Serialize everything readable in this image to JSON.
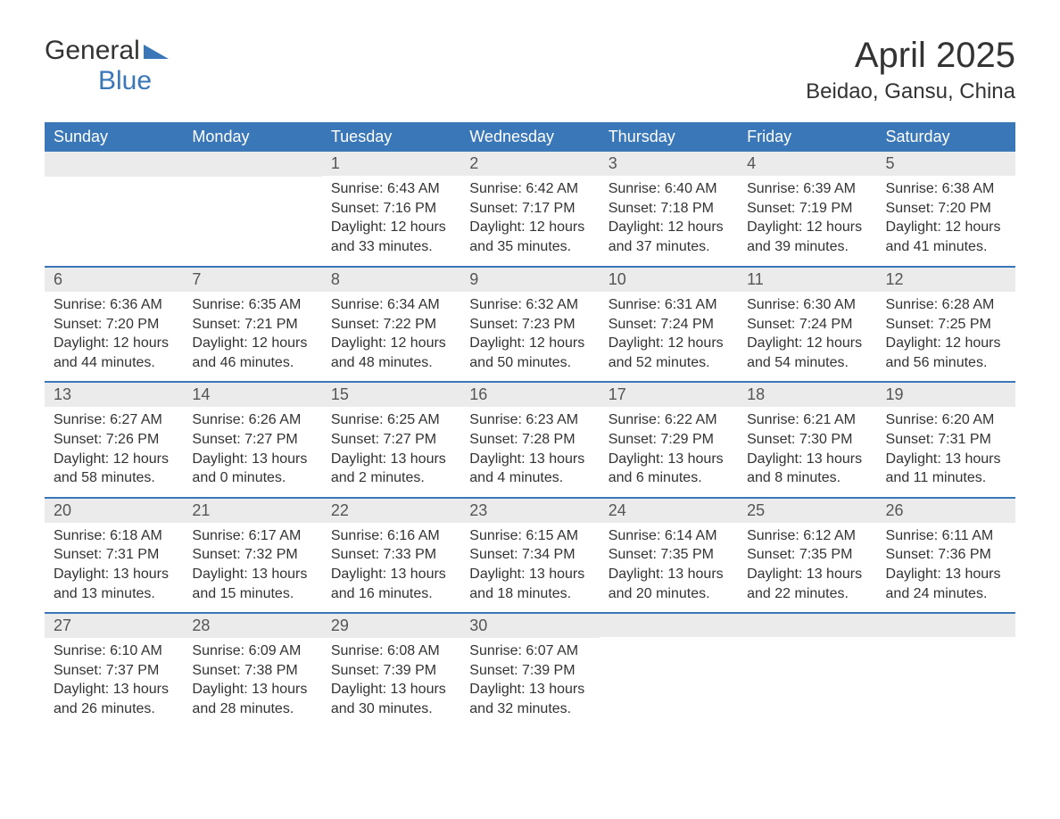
{
  "logo": {
    "text1": "General",
    "text2": "Blue"
  },
  "title": "April 2025",
  "location": "Beidao, Gansu, China",
  "header_bg": "#3a77b8",
  "daynum_bg": "#ebebeb",
  "row_border": "#3a77b8",
  "text_color": "#333333",
  "days": [
    "Sunday",
    "Monday",
    "Tuesday",
    "Wednesday",
    "Thursday",
    "Friday",
    "Saturday"
  ],
  "weeks": [
    [
      {
        "n": "",
        "sr": "",
        "ss": "",
        "dl": ""
      },
      {
        "n": "",
        "sr": "",
        "ss": "",
        "dl": ""
      },
      {
        "n": "1",
        "sr": "Sunrise: 6:43 AM",
        "ss": "Sunset: 7:16 PM",
        "dl": "Daylight: 12 hours and 33 minutes."
      },
      {
        "n": "2",
        "sr": "Sunrise: 6:42 AM",
        "ss": "Sunset: 7:17 PM",
        "dl": "Daylight: 12 hours and 35 minutes."
      },
      {
        "n": "3",
        "sr": "Sunrise: 6:40 AM",
        "ss": "Sunset: 7:18 PM",
        "dl": "Daylight: 12 hours and 37 minutes."
      },
      {
        "n": "4",
        "sr": "Sunrise: 6:39 AM",
        "ss": "Sunset: 7:19 PM",
        "dl": "Daylight: 12 hours and 39 minutes."
      },
      {
        "n": "5",
        "sr": "Sunrise: 6:38 AM",
        "ss": "Sunset: 7:20 PM",
        "dl": "Daylight: 12 hours and 41 minutes."
      }
    ],
    [
      {
        "n": "6",
        "sr": "Sunrise: 6:36 AM",
        "ss": "Sunset: 7:20 PM",
        "dl": "Daylight: 12 hours and 44 minutes."
      },
      {
        "n": "7",
        "sr": "Sunrise: 6:35 AM",
        "ss": "Sunset: 7:21 PM",
        "dl": "Daylight: 12 hours and 46 minutes."
      },
      {
        "n": "8",
        "sr": "Sunrise: 6:34 AM",
        "ss": "Sunset: 7:22 PM",
        "dl": "Daylight: 12 hours and 48 minutes."
      },
      {
        "n": "9",
        "sr": "Sunrise: 6:32 AM",
        "ss": "Sunset: 7:23 PM",
        "dl": "Daylight: 12 hours and 50 minutes."
      },
      {
        "n": "10",
        "sr": "Sunrise: 6:31 AM",
        "ss": "Sunset: 7:24 PM",
        "dl": "Daylight: 12 hours and 52 minutes."
      },
      {
        "n": "11",
        "sr": "Sunrise: 6:30 AM",
        "ss": "Sunset: 7:24 PM",
        "dl": "Daylight: 12 hours and 54 minutes."
      },
      {
        "n": "12",
        "sr": "Sunrise: 6:28 AM",
        "ss": "Sunset: 7:25 PM",
        "dl": "Daylight: 12 hours and 56 minutes."
      }
    ],
    [
      {
        "n": "13",
        "sr": "Sunrise: 6:27 AM",
        "ss": "Sunset: 7:26 PM",
        "dl": "Daylight: 12 hours and 58 minutes."
      },
      {
        "n": "14",
        "sr": "Sunrise: 6:26 AM",
        "ss": "Sunset: 7:27 PM",
        "dl": "Daylight: 13 hours and 0 minutes."
      },
      {
        "n": "15",
        "sr": "Sunrise: 6:25 AM",
        "ss": "Sunset: 7:27 PM",
        "dl": "Daylight: 13 hours and 2 minutes."
      },
      {
        "n": "16",
        "sr": "Sunrise: 6:23 AM",
        "ss": "Sunset: 7:28 PM",
        "dl": "Daylight: 13 hours and 4 minutes."
      },
      {
        "n": "17",
        "sr": "Sunrise: 6:22 AM",
        "ss": "Sunset: 7:29 PM",
        "dl": "Daylight: 13 hours and 6 minutes."
      },
      {
        "n": "18",
        "sr": "Sunrise: 6:21 AM",
        "ss": "Sunset: 7:30 PM",
        "dl": "Daylight: 13 hours and 8 minutes."
      },
      {
        "n": "19",
        "sr": "Sunrise: 6:20 AM",
        "ss": "Sunset: 7:31 PM",
        "dl": "Daylight: 13 hours and 11 minutes."
      }
    ],
    [
      {
        "n": "20",
        "sr": "Sunrise: 6:18 AM",
        "ss": "Sunset: 7:31 PM",
        "dl": "Daylight: 13 hours and 13 minutes."
      },
      {
        "n": "21",
        "sr": "Sunrise: 6:17 AM",
        "ss": "Sunset: 7:32 PM",
        "dl": "Daylight: 13 hours and 15 minutes."
      },
      {
        "n": "22",
        "sr": "Sunrise: 6:16 AM",
        "ss": "Sunset: 7:33 PM",
        "dl": "Daylight: 13 hours and 16 minutes."
      },
      {
        "n": "23",
        "sr": "Sunrise: 6:15 AM",
        "ss": "Sunset: 7:34 PM",
        "dl": "Daylight: 13 hours and 18 minutes."
      },
      {
        "n": "24",
        "sr": "Sunrise: 6:14 AM",
        "ss": "Sunset: 7:35 PM",
        "dl": "Daylight: 13 hours and 20 minutes."
      },
      {
        "n": "25",
        "sr": "Sunrise: 6:12 AM",
        "ss": "Sunset: 7:35 PM",
        "dl": "Daylight: 13 hours and 22 minutes."
      },
      {
        "n": "26",
        "sr": "Sunrise: 6:11 AM",
        "ss": "Sunset: 7:36 PM",
        "dl": "Daylight: 13 hours and 24 minutes."
      }
    ],
    [
      {
        "n": "27",
        "sr": "Sunrise: 6:10 AM",
        "ss": "Sunset: 7:37 PM",
        "dl": "Daylight: 13 hours and 26 minutes."
      },
      {
        "n": "28",
        "sr": "Sunrise: 6:09 AM",
        "ss": "Sunset: 7:38 PM",
        "dl": "Daylight: 13 hours and 28 minutes."
      },
      {
        "n": "29",
        "sr": "Sunrise: 6:08 AM",
        "ss": "Sunset: 7:39 PM",
        "dl": "Daylight: 13 hours and 30 minutes."
      },
      {
        "n": "30",
        "sr": "Sunrise: 6:07 AM",
        "ss": "Sunset: 7:39 PM",
        "dl": "Daylight: 13 hours and 32 minutes."
      },
      {
        "n": "",
        "sr": "",
        "ss": "",
        "dl": ""
      },
      {
        "n": "",
        "sr": "",
        "ss": "",
        "dl": ""
      },
      {
        "n": "",
        "sr": "",
        "ss": "",
        "dl": ""
      }
    ]
  ]
}
